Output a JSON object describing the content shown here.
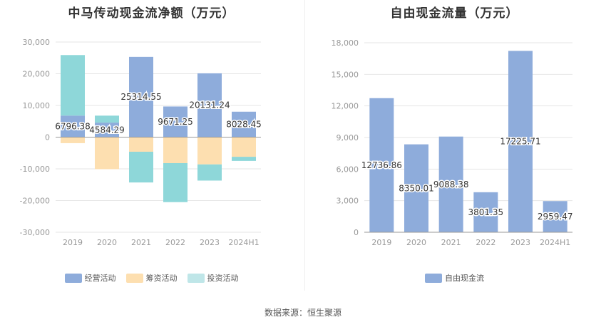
{
  "chart_data": [
    {
      "type": "bar",
      "stacked": true,
      "title": "中马传动现金流净额（万元）",
      "categories": [
        "2019",
        "2020",
        "2021",
        "2022",
        "2023",
        "2024H1"
      ],
      "ylim": [
        -30000,
        30000
      ],
      "yticks": [
        30000,
        20000,
        10000,
        0,
        -10000,
        -20000,
        -30000
      ],
      "ytick_labels": [
        "30,000",
        "20,000",
        "10,000",
        "0",
        "-10,000",
        "-20,000",
        "-30,000"
      ],
      "series": [
        {
          "name": "经营活动",
          "color": "#8eacdb",
          "values": [
            6796.38,
            4584.29,
            25314.55,
            9671.25,
            20131.24,
            8028.45
          ]
        },
        {
          "name": "筹资活动",
          "color": "#fddfb0",
          "values": [
            -1900,
            -10100,
            -4600,
            -8200,
            -8600,
            -6200
          ]
        },
        {
          "name": "投资活动",
          "color": "#8ed7d9",
          "values": [
            19100,
            2200,
            -9700,
            -12300,
            -5100,
            -1300
          ]
        }
      ],
      "data_labels": [
        "6796.38",
        "4584.29",
        "25314.55",
        "9671.25",
        "20131.24",
        "8028.45"
      ],
      "legend_position": "bottom"
    },
    {
      "type": "bar",
      "title": "自由现金流量（万元）",
      "categories": [
        "2019",
        "2020",
        "2021",
        "2022",
        "2023",
        "2024H1"
      ],
      "ylim": [
        0,
        18000
      ],
      "yticks": [
        18000,
        15000,
        12000,
        9000,
        6000,
        3000,
        0
      ],
      "ytick_labels": [
        "18,000",
        "15,000",
        "12,000",
        "9,000",
        "6,000",
        "3,000",
        "0"
      ],
      "series": [
        {
          "name": "自由现金流",
          "color": "#8eacdb",
          "values": [
            12736.86,
            8350.01,
            9088.38,
            3801.35,
            17225.71,
            2959.47
          ]
        }
      ],
      "data_labels": [
        "12736.86",
        "8350.01",
        "9088.38",
        "3801.35",
        "17225.71",
        "2959.47"
      ],
      "legend_position": "bottom"
    }
  ],
  "source": "数据来源：恒生聚源"
}
